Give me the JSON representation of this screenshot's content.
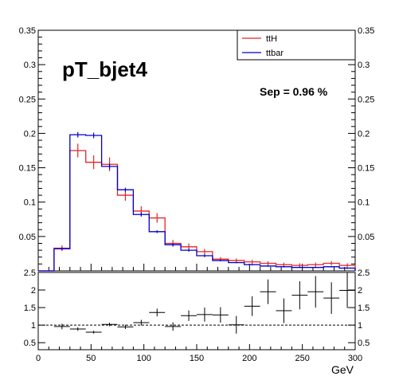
{
  "chart_data": [
    {
      "type": "step",
      "title": "pT_bjet4",
      "annotation": "Sep = 0.96 %",
      "xlabel": "GeV",
      "xlim": [
        0,
        300
      ],
      "ylim": [
        0,
        0.35
      ],
      "grid": false,
      "legend_position": "top-right",
      "bin_edges": [
        0,
        15,
        30,
        45,
        60,
        75,
        90,
        105,
        120,
        135,
        150,
        165,
        180,
        195,
        210,
        225,
        240,
        255,
        270,
        285,
        300
      ],
      "x_ticks": [
        0,
        50,
        100,
        150,
        200,
        250,
        300
      ],
      "y_ticks": [
        0.05,
        0.1,
        0.15,
        0.2,
        0.25,
        0.3,
        0.35
      ],
      "y_tick_labels": [
        "0.05",
        "0.1",
        "0.15",
        "0.2",
        "0.25",
        "0.3",
        "0.35"
      ],
      "series": [
        {
          "name": "ttH",
          "color": "#e32626",
          "values": [
            0.0,
            0.033,
            0.175,
            0.158,
            0.155,
            0.11,
            0.087,
            0.077,
            0.04,
            0.035,
            0.028,
            0.017,
            0.015,
            0.013,
            0.011,
            0.009,
            0.008,
            0.009,
            0.011,
            0.008
          ],
          "errors": [
            0.0,
            0.004,
            0.01,
            0.01,
            0.01,
            0.008,
            0.007,
            0.007,
            0.005,
            0.005,
            0.004,
            0.003,
            0.003,
            0.003,
            0.003,
            0.003,
            0.003,
            0.003,
            0.003,
            0.003
          ]
        },
        {
          "name": "ttbar",
          "color": "#0000cc",
          "values": [
            0.0,
            0.032,
            0.198,
            0.197,
            0.152,
            0.118,
            0.082,
            0.057,
            0.038,
            0.03,
            0.022,
            0.015,
            0.012,
            0.009,
            0.007,
            0.006,
            0.005,
            0.005,
            0.006,
            0.004
          ],
          "errors": [
            0.0,
            0.002,
            0.004,
            0.004,
            0.004,
            0.003,
            0.003,
            0.002,
            0.002,
            0.002,
            0.002,
            0.001,
            0.001,
            0.001,
            0.001,
            0.001,
            0.001,
            0.001,
            0.001,
            0.001
          ]
        }
      ]
    },
    {
      "type": "scatter",
      "subtype": "ratio",
      "xlim": [
        0,
        300
      ],
      "ylim": [
        0.3,
        2.5
      ],
      "reference_line": 1,
      "x_ticks": [
        0,
        50,
        100,
        150,
        200,
        250,
        300
      ],
      "y_ticks": [
        0.5,
        1,
        1.5,
        2,
        2.5
      ],
      "y_tick_labels": [
        "0.5",
        "1",
        "1.5",
        "2",
        "2.5"
      ],
      "bin_edges": [
        0,
        15,
        30,
        45,
        60,
        75,
        90,
        105,
        120,
        135,
        150,
        165,
        180,
        195,
        210,
        225,
        240,
        255,
        270,
        285,
        300
      ],
      "values": [
        null,
        0.96,
        0.89,
        0.8,
        1.02,
        0.95,
        1.07,
        1.36,
        0.96,
        1.27,
        1.3,
        1.29,
        1.01,
        1.54,
        1.95,
        1.41,
        1.85,
        1.95,
        1.77,
        1.99
      ],
      "errors": [
        0,
        0.08,
        0.05,
        0.04,
        0.05,
        0.06,
        0.08,
        0.11,
        0.12,
        0.15,
        0.2,
        0.22,
        0.25,
        0.28,
        0.35,
        0.35,
        0.4,
        0.45,
        0.45,
        0.5
      ]
    }
  ],
  "legend": {
    "entries": [
      {
        "label": "ttH",
        "color": "#e32626"
      },
      {
        "label": "ttbar",
        "color": "#0000cc"
      }
    ]
  },
  "texts": {
    "title": "pT_bjet4",
    "sep": "Sep = 0.96 %",
    "x_title": "GeV",
    "x_tick_labels": [
      "0",
      "50",
      "100",
      "150",
      "200",
      "250",
      "300"
    ]
  }
}
